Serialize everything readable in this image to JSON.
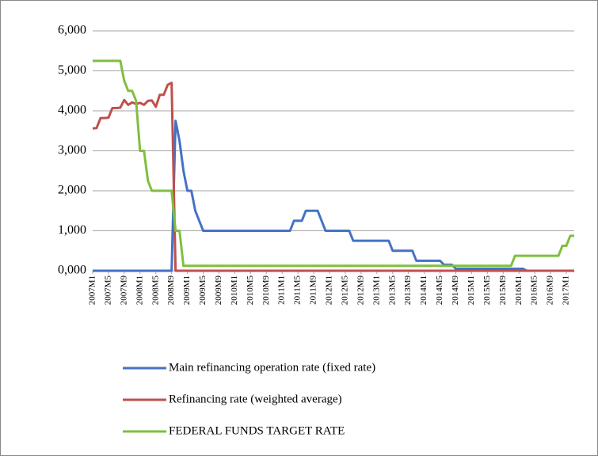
{
  "chart_data": {
    "type": "line",
    "categories": [
      "2007M1",
      null,
      null,
      null,
      "2007M5",
      null,
      null,
      null,
      "2007M9",
      null,
      null,
      null,
      "2008M1",
      null,
      null,
      null,
      "2008M5",
      null,
      null,
      null,
      "2008M9",
      null,
      null,
      null,
      "2009M1",
      null,
      null,
      null,
      "2009M5",
      null,
      null,
      null,
      "2009M9",
      null,
      null,
      null,
      "2010M1",
      null,
      null,
      null,
      "2010M5",
      null,
      null,
      null,
      "2010M9",
      null,
      null,
      null,
      "2011M1",
      null,
      null,
      null,
      "2011M5",
      null,
      null,
      null,
      "2011M9",
      null,
      null,
      null,
      "2012M1",
      null,
      null,
      null,
      "2012M5",
      null,
      null,
      null,
      "2012M9",
      null,
      null,
      null,
      "2013M1",
      null,
      null,
      null,
      "2013M5",
      null,
      null,
      null,
      "2013M9",
      null,
      null,
      null,
      "2014M1",
      null,
      null,
      null,
      "2014M5",
      null,
      null,
      null,
      "2014M9",
      null,
      null,
      null,
      "2015M1",
      null,
      null,
      null,
      "2015M5",
      null,
      null,
      null,
      "2015M9",
      null,
      null,
      null,
      "2016M1",
      null,
      null,
      null,
      "2016M5",
      null,
      null,
      null,
      "2016M9",
      null,
      null,
      null,
      "2017M1",
      null,
      null
    ],
    "series": [
      {
        "name": "Main refinancing operation rate (fixed rate)",
        "color": "#4472c4",
        "values": [
          0,
          0,
          0,
          0,
          0,
          0,
          0,
          0,
          0,
          0,
          0,
          0,
          0,
          0,
          0,
          0,
          0,
          0,
          0,
          0,
          0,
          3.75,
          3.25,
          2.5,
          2,
          2,
          1.5,
          1.25,
          1,
          1,
          1,
          1,
          1,
          1,
          1,
          1,
          1,
          1,
          1,
          1,
          1,
          1,
          1,
          1,
          1,
          1,
          1,
          1,
          1,
          1,
          1,
          1.25,
          1.25,
          1.25,
          1.5,
          1.5,
          1.5,
          1.5,
          1.25,
          1,
          1,
          1,
          1,
          1,
          1,
          1,
          0.75,
          0.75,
          0.75,
          0.75,
          0.75,
          0.75,
          0.75,
          0.75,
          0.75,
          0.75,
          0.5,
          0.5,
          0.5,
          0.5,
          0.5,
          0.5,
          0.25,
          0.25,
          0.25,
          0.25,
          0.25,
          0.25,
          0.25,
          0.15,
          0.15,
          0.15,
          0.05,
          0.05,
          0.05,
          0.05,
          0.05,
          0.05,
          0.05,
          0.05,
          0.05,
          0.05,
          0.05,
          0.05,
          0.05,
          0.05,
          0.05,
          0.05,
          0.05,
          0.05,
          0,
          0,
          0,
          0,
          0,
          0,
          0,
          0,
          0,
          0,
          0,
          0,
          0
        ]
      },
      {
        "name": "Refinancing rate (weighted average)",
        "color": "#c0504d",
        "values": [
          3.56,
          3.57,
          3.82,
          3.82,
          3.83,
          4.07,
          4.07,
          4.08,
          4.27,
          4.15,
          4.21,
          4.17,
          4.2,
          4.15,
          4.25,
          4.26,
          4.1,
          4.4,
          4.4,
          4.65,
          4.7,
          0,
          0,
          0,
          0,
          0,
          0,
          0,
          0,
          0,
          0,
          0,
          0,
          0,
          0,
          0,
          0,
          0,
          0,
          0,
          0,
          0,
          0,
          0,
          0,
          0,
          0,
          0,
          0,
          0,
          0,
          0,
          0,
          0,
          0,
          0,
          0,
          0,
          0,
          0,
          0,
          0,
          0,
          0,
          0,
          0,
          0,
          0,
          0,
          0,
          0,
          0,
          0,
          0,
          0,
          0,
          0,
          0,
          0,
          0,
          0,
          0,
          0,
          0,
          0,
          0,
          0,
          0,
          0,
          0,
          0,
          0,
          0,
          0,
          0,
          0,
          0,
          0,
          0,
          0,
          0,
          0,
          0,
          0,
          0,
          0,
          0,
          0,
          0,
          0,
          0,
          0,
          0,
          0,
          0,
          0,
          0,
          0,
          0,
          0,
          0,
          0,
          0
        ]
      },
      {
        "name": "FEDERAL FUNDS TARGET RATE",
        "color": "#7fbf3f",
        "values": [
          5.25,
          5.25,
          5.25,
          5.25,
          5.25,
          5.25,
          5.25,
          5.25,
          4.75,
          4.5,
          4.5,
          4.25,
          3,
          3,
          2.25,
          2,
          2,
          2,
          2,
          2,
          2,
          1,
          1,
          0.125,
          0.125,
          0.125,
          0.125,
          0.125,
          0.125,
          0.125,
          0.125,
          0.125,
          0.125,
          0.125,
          0.125,
          0.125,
          0.125,
          0.125,
          0.125,
          0.125,
          0.125,
          0.125,
          0.125,
          0.125,
          0.125,
          0.125,
          0.125,
          0.125,
          0.125,
          0.125,
          0.125,
          0.125,
          0.125,
          0.125,
          0.125,
          0.125,
          0.125,
          0.125,
          0.125,
          0.125,
          0.125,
          0.125,
          0.125,
          0.125,
          0.125,
          0.125,
          0.125,
          0.125,
          0.125,
          0.125,
          0.125,
          0.125,
          0.125,
          0.125,
          0.125,
          0.125,
          0.125,
          0.125,
          0.125,
          0.125,
          0.125,
          0.125,
          0.125,
          0.125,
          0.125,
          0.125,
          0.125,
          0.125,
          0.125,
          0.125,
          0.125,
          0.125,
          0.125,
          0.125,
          0.125,
          0.125,
          0.125,
          0.125,
          0.125,
          0.125,
          0.125,
          0.125,
          0.125,
          0.125,
          0.125,
          0.125,
          0.125,
          0.375,
          0.375,
          0.375,
          0.375,
          0.375,
          0.375,
          0.375,
          0.375,
          0.375,
          0.375,
          0.375,
          0.375,
          0.625,
          0.625,
          0.875,
          0.875
        ]
      }
    ],
    "ylim": [
      0,
      6
    ],
    "yticks": [
      {
        "value": 0,
        "label": "0,000"
      },
      {
        "value": 1,
        "label": "1,000"
      },
      {
        "value": 2,
        "label": "2,000"
      },
      {
        "value": 3,
        "label": "3,000"
      },
      {
        "value": 4,
        "label": "4,000"
      },
      {
        "value": 5,
        "label": "5,000"
      },
      {
        "value": 6,
        "label": "6,000"
      }
    ],
    "grid": true
  }
}
